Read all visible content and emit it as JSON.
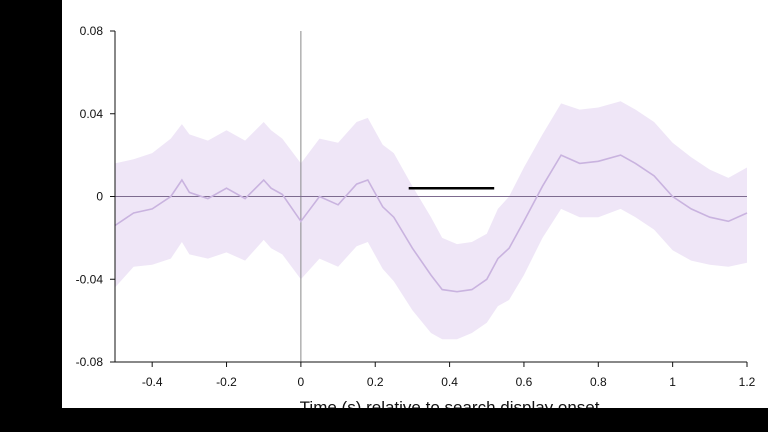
{
  "chart_data": {
    "type": "line",
    "title": "",
    "xlabel": "Time (s) relative to search display onset",
    "ylabel": "",
    "xlim": [
      -0.5,
      1.2
    ],
    "ylim": [
      -0.08,
      0.08
    ],
    "x_ticks": [
      -0.4,
      -0.2,
      0,
      0.2,
      0.4,
      0.6,
      0.8,
      1,
      1.2
    ],
    "x_tick_labels": [
      "-0.4",
      "-0.2",
      "0",
      "0.2",
      "0.4",
      "0.6",
      "0.8",
      "1",
      "1.2"
    ],
    "y_ticks": [
      -0.08,
      -0.04,
      0,
      0.04,
      0.08
    ],
    "y_tick_labels": [
      "-0.08",
      "-0.04",
      "0",
      "0.04",
      "0.08"
    ],
    "grid": false,
    "legend": "none",
    "colors": {
      "line": "#c9b3df",
      "band": "#efe6f7",
      "zero_line": "#7d6b8f",
      "onset_line": "#8a8a8a",
      "significance_bar": "#000000"
    },
    "series": [
      {
        "x": [
          -0.5,
          -0.45,
          -0.4,
          -0.35,
          -0.32,
          -0.3,
          -0.25,
          -0.2,
          -0.15,
          -0.1,
          -0.08,
          -0.05,
          0.0,
          0.05,
          0.1,
          0.15,
          0.18,
          0.22,
          0.25,
          0.3,
          0.35,
          0.38,
          0.42,
          0.46,
          0.5,
          0.53,
          0.56,
          0.6,
          0.65,
          0.7,
          0.75,
          0.8,
          0.86,
          0.9,
          0.95,
          1.0,
          1.05,
          1.1,
          1.15,
          1.2
        ],
        "y": [
          -0.014,
          -0.008,
          -0.006,
          0.0,
          0.008,
          0.002,
          -0.001,
          0.004,
          -0.001,
          0.008,
          0.004,
          0.001,
          -0.012,
          0.0,
          -0.004,
          0.006,
          0.008,
          -0.005,
          -0.01,
          -0.025,
          -0.038,
          -0.045,
          -0.046,
          -0.045,
          -0.04,
          -0.03,
          -0.025,
          -0.012,
          0.005,
          0.02,
          0.016,
          0.017,
          0.02,
          0.016,
          0.01,
          0.0,
          -0.006,
          -0.01,
          -0.012,
          -0.008
        ],
        "lower": [
          -0.044,
          -0.034,
          -0.033,
          -0.03,
          -0.022,
          -0.028,
          -0.03,
          -0.027,
          -0.031,
          -0.021,
          -0.025,
          -0.028,
          -0.04,
          -0.03,
          -0.034,
          -0.024,
          -0.022,
          -0.035,
          -0.041,
          -0.055,
          -0.066,
          -0.069,
          -0.069,
          -0.066,
          -0.061,
          -0.053,
          -0.05,
          -0.038,
          -0.02,
          -0.006,
          -0.01,
          -0.01,
          -0.006,
          -0.01,
          -0.016,
          -0.026,
          -0.031,
          -0.033,
          -0.034,
          -0.032
        ],
        "upper": [
          0.016,
          0.018,
          0.021,
          0.028,
          0.035,
          0.03,
          0.027,
          0.032,
          0.027,
          0.036,
          0.032,
          0.028,
          0.016,
          0.028,
          0.026,
          0.036,
          0.038,
          0.025,
          0.021,
          0.005,
          -0.01,
          -0.02,
          -0.023,
          -0.022,
          -0.018,
          -0.006,
          0.0,
          0.014,
          0.03,
          0.045,
          0.042,
          0.043,
          0.046,
          0.042,
          0.036,
          0.026,
          0.019,
          0.013,
          0.009,
          0.014
        ]
      }
    ],
    "significance_bar": {
      "x_start": 0.29,
      "x_end": 0.52,
      "y": 0.004
    }
  }
}
